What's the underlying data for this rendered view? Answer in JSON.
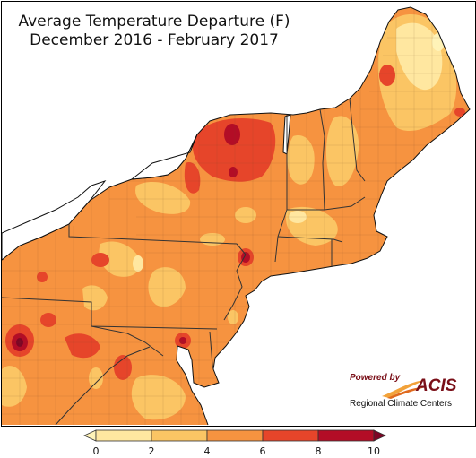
{
  "title": {
    "line1": "Average Temperature Departure (F)",
    "line2": "December 2016 - February 2017"
  },
  "logo": {
    "powered_by": "Powered by",
    "name": "ACIS",
    "subtitle": "Regional Climate Centers"
  },
  "legend": {
    "ticks": [
      "0",
      "2",
      "4",
      "6",
      "8",
      "10"
    ],
    "bins": [
      {
        "range": "<0",
        "color": "#fff3b8"
      },
      {
        "range": "0-2",
        "color": "#ffe7a0"
      },
      {
        "range": "2-4",
        "color": "#fbc564"
      },
      {
        "range": "4-6",
        "color": "#f69340"
      },
      {
        "range": "6-8",
        "color": "#e6452a"
      },
      {
        "range": "8-10",
        "color": "#b30d26"
      },
      {
        "range": ">10",
        "color": "#7d0525"
      }
    ]
  },
  "colors": {
    "land_base": "#f69340",
    "water": "#ffffff",
    "state_borders": "#333333",
    "county_borders": "#7a4a2a"
  }
}
